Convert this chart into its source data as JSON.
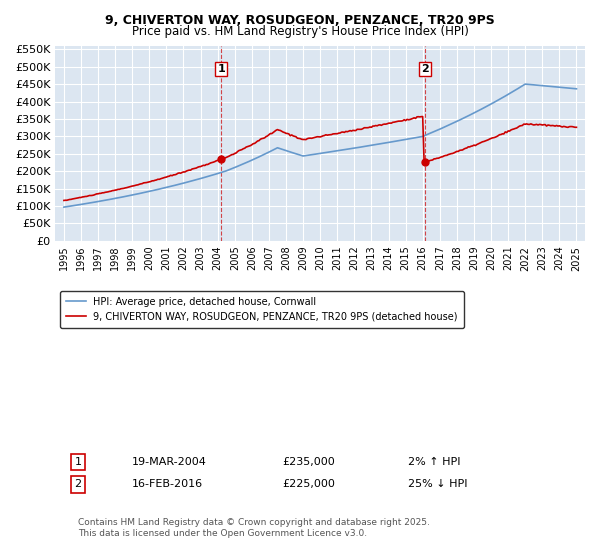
{
  "title_line1": "9, CHIVERTON WAY, ROSUDGEON, PENZANCE, TR20 9PS",
  "title_line2": "Price paid vs. HM Land Registry's House Price Index (HPI)",
  "ylabel": "",
  "background_color": "#ffffff",
  "plot_bg_color": "#dce6f1",
  "grid_color": "#ffffff",
  "red_line_color": "#cc0000",
  "blue_line_color": "#6699cc",
  "marker1_date_x": 2004.21,
  "marker1_y": 235000,
  "marker2_date_x": 2016.12,
  "marker2_y": 225000,
  "xmin": 1994.5,
  "xmax": 2025.5,
  "ymin": 0,
  "ymax": 560000,
  "yticks": [
    0,
    50000,
    100000,
    150000,
    200000,
    250000,
    300000,
    350000,
    400000,
    450000,
    500000,
    550000
  ],
  "ytick_labels": [
    "£0",
    "£50K",
    "£100K",
    "£150K",
    "£200K",
    "£250K",
    "£300K",
    "£350K",
    "£400K",
    "£450K",
    "£500K",
    "£550K"
  ],
  "legend1_label": "9, CHIVERTON WAY, ROSUDGEON, PENZANCE, TR20 9PS (detached house)",
  "legend2_label": "HPI: Average price, detached house, Cornwall",
  "annot1_label": "1",
  "annot1_date": "19-MAR-2004",
  "annot1_price": "£235,000",
  "annot1_hpi": "2% ↑ HPI",
  "annot2_label": "2",
  "annot2_date": "16-FEB-2016",
  "annot2_price": "£225,000",
  "annot2_hpi": "25% ↓ HPI",
  "footer": "Contains HM Land Registry data © Crown copyright and database right 2025.\nThis data is licensed under the Open Government Licence v3.0."
}
